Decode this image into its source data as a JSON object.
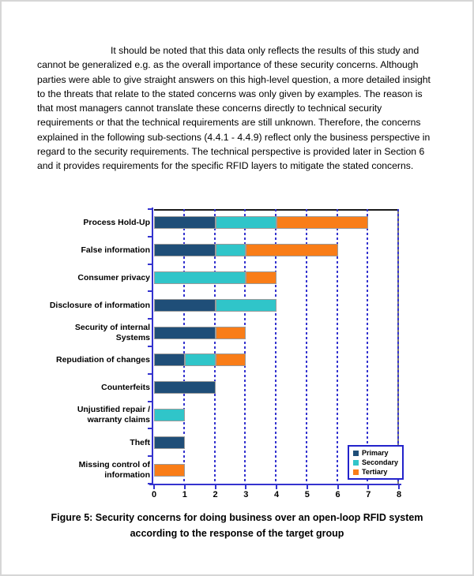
{
  "document": {
    "paragraph_lines": [
      "It should be noted that this data only reflects the results of this study and",
      "cannot be generalized e.g. as the overall importance of these security concerns. Although",
      "parties were able to give straight answers on this high-level question, a more detailed insight",
      "to the threats that relate to the stated concerns was only given by examples. The reason is",
      "that most managers cannot translate these concerns directly to technical security",
      "requirements or that the technical requirements are still unknown. Therefore, the concerns",
      "explained in the following sub-sections (4.4.1 - 4.4.9) reflect only the business perspective in",
      "regard to the security requirements. The technical perspective is provided later in Section 6",
      "and it provides requirements for the specific RFID layers to mitigate the stated concerns."
    ],
    "caption_lines": [
      "Figure 5: Security concerns for doing business over an open-loop RFID system",
      "according to the response of the target group"
    ]
  },
  "chart_data": {
    "type": "bar",
    "orientation": "horizontal",
    "stacked": true,
    "title": "",
    "xlabel": "",
    "ylabel": "",
    "xlim": [
      0,
      8
    ],
    "x_ticks": [
      0,
      1,
      2,
      3,
      4,
      5,
      6,
      7,
      8
    ],
    "grid": "vertical-dashed",
    "legend_position": "bottom-right",
    "categories": [
      "Process Hold-Up",
      "False information",
      "Consumer privacy",
      "Disclosure of information",
      "Security of internal\nSystems",
      "Repudiation of changes",
      "Counterfeits",
      "Unjustified repair /\nwarranty claims",
      "Theft",
      "Missing control of\ninformation"
    ],
    "series": [
      {
        "name": "Primary",
        "color": "#1f4e78",
        "values": [
          2,
          2,
          0,
          2,
          2,
          1,
          2,
          0,
          1,
          0
        ]
      },
      {
        "name": "Secondary",
        "color": "#30c5c9",
        "values": [
          2,
          1,
          3,
          2,
          0,
          1,
          0,
          1,
          0,
          0
        ]
      },
      {
        "name": "Tertiary",
        "color": "#f97d18",
        "values": [
          3,
          3,
          1,
          0,
          1,
          1,
          0,
          0,
          0,
          1
        ]
      }
    ],
    "colors": {
      "grid": "#3433cf",
      "axis": "#3433cf",
      "frame_top": "#1a1a1a",
      "frame_right": "#777777",
      "legend_border": "#2323cb",
      "bar_outline": "#9b9b9b",
      "text": "#000000"
    }
  }
}
